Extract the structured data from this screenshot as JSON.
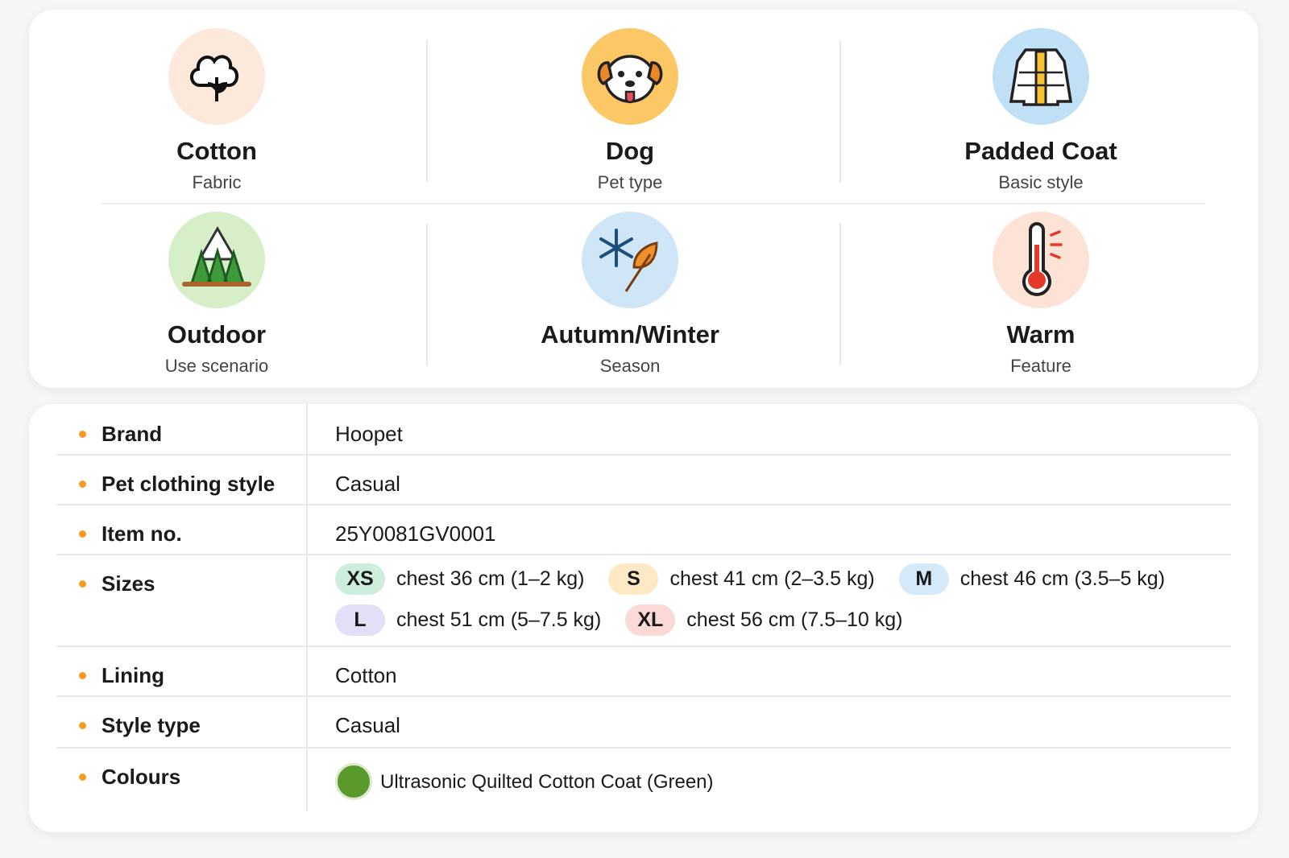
{
  "features": [
    {
      "title": "Cotton",
      "subtitle": "Fabric"
    },
    {
      "title": "Dog",
      "subtitle": "Pet type"
    },
    {
      "title": "Padded Coat",
      "subtitle": "Basic style"
    },
    {
      "title": "Outdoor",
      "subtitle": "Use scenario"
    },
    {
      "title": "Autumn/Winter",
      "subtitle": "Season"
    },
    {
      "title": "Warm",
      "subtitle": "Feature"
    }
  ],
  "specs": {
    "rows": [
      {
        "label": "Brand",
        "value": "Hoopet"
      },
      {
        "label": "Pet clothing style",
        "value": "Casual"
      },
      {
        "label": "Item no.",
        "value": "25Y0081GV0001"
      },
      {
        "label": "Sizes",
        "sizes": [
          {
            "size": "XS",
            "desc": "chest 36 cm (1–2 kg)"
          },
          {
            "size": "S",
            "desc": "chest 41 cm (2–3.5 kg)"
          },
          {
            "size": "M",
            "desc": "chest 46 cm (3.5–5 kg)"
          },
          {
            "size": "L",
            "desc": "chest 51 cm (5–7.5 kg)"
          },
          {
            "size": "XL",
            "desc": "chest 56 cm (7.5–10 kg)"
          }
        ]
      },
      {
        "label": "Lining",
        "value": "Cotton"
      },
      {
        "label": "Style type",
        "value": "Casual"
      },
      {
        "label": "Colours",
        "colour": "Ultrasonic Quilted Cotton Coat (Green)"
      }
    ]
  }
}
